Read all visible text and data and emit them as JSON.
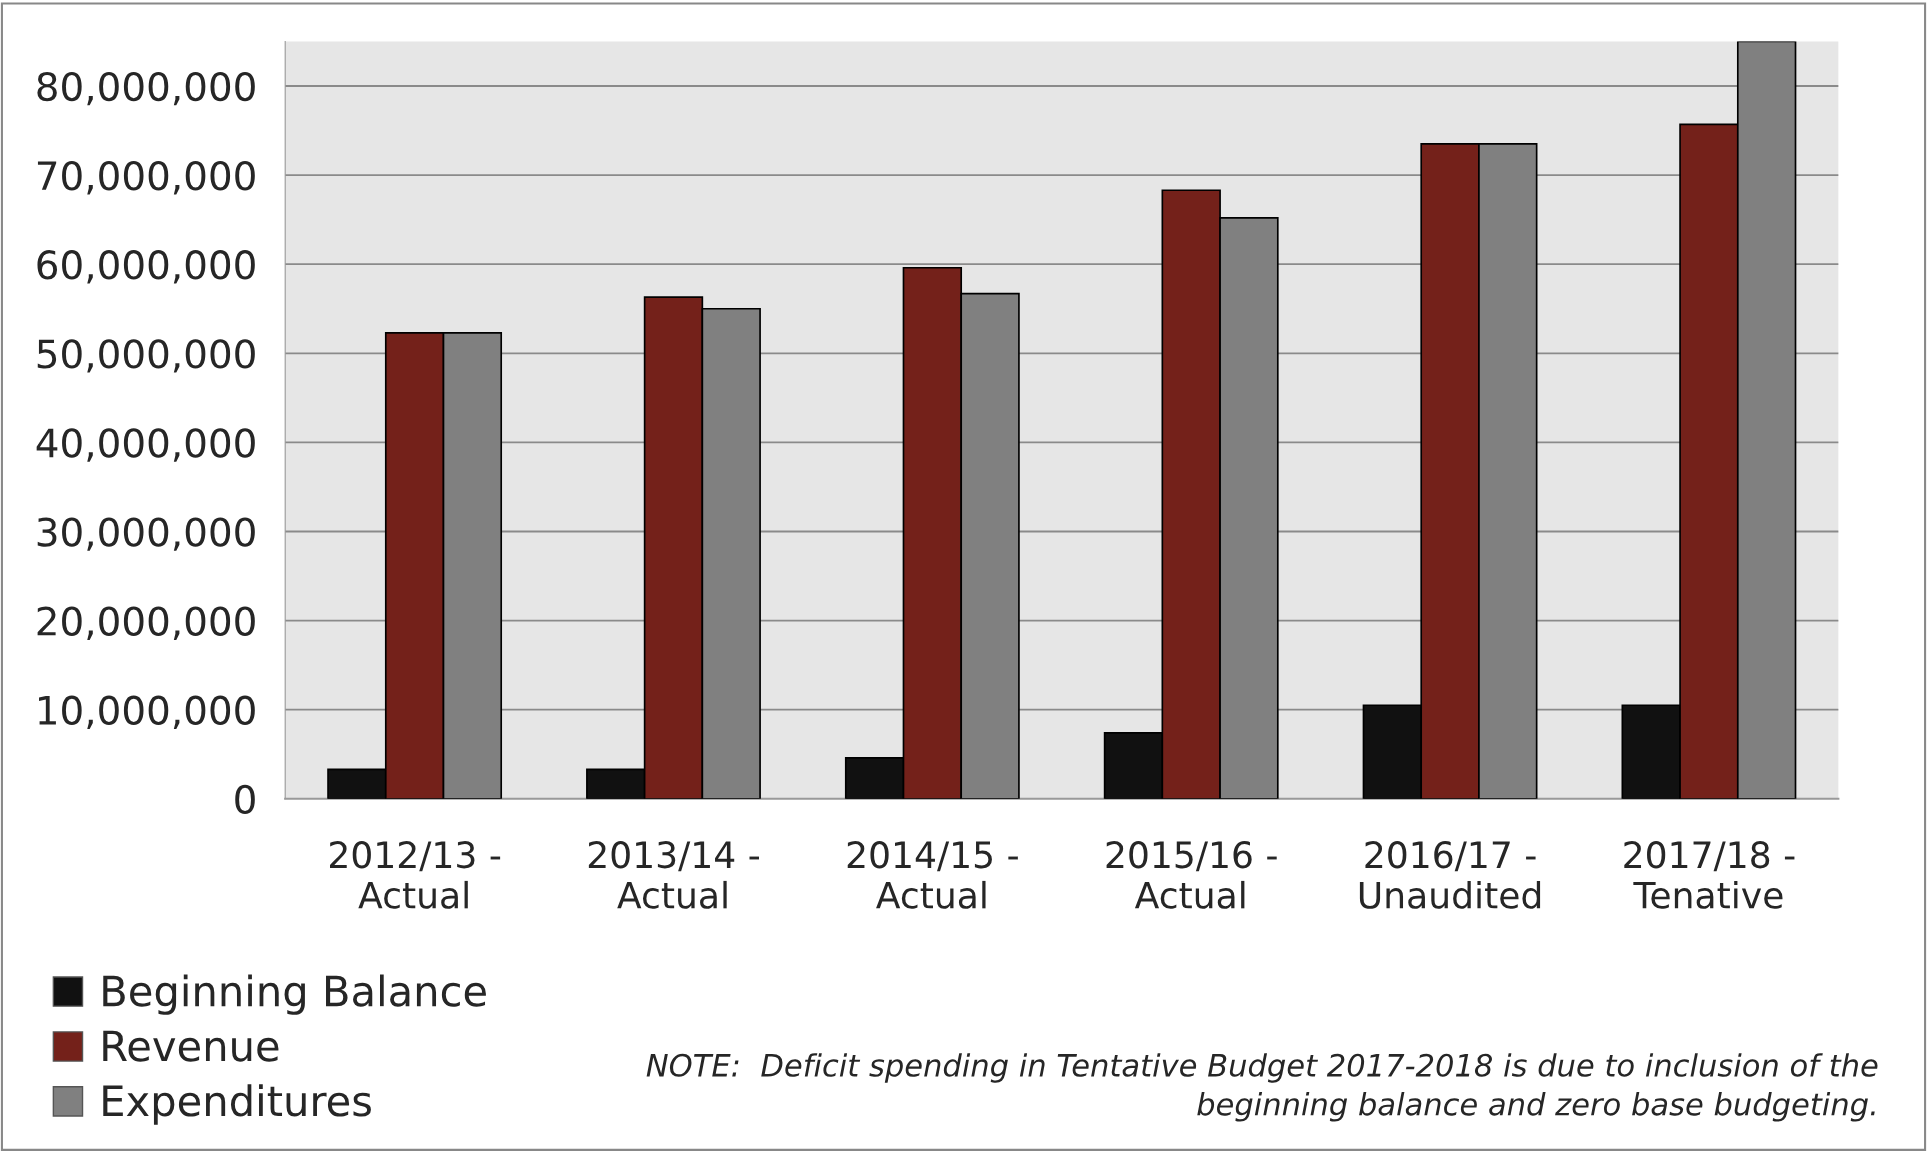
{
  "chart_data": {
    "type": "bar",
    "categories": [
      "2012/13 -\nActual",
      "2013/14 -\nActual",
      "2014/15 -\nActual",
      "2015/16 -\nActual",
      "2016/17 -\nUnaudited",
      "2017/18 -\nTenative"
    ],
    "series": [
      {
        "name": "Beginning Balance",
        "color": "#111111",
        "values": [
          3300000,
          3300000,
          4600000,
          7400000,
          10500000,
          10500000
        ]
      },
      {
        "name": "Revenue",
        "color": "#74211a",
        "values": [
          52300000,
          56300000,
          59600000,
          68300000,
          73500000,
          75700000
        ]
      },
      {
        "name": "Expenditures",
        "color": "#808080",
        "values": [
          52300000,
          55000000,
          56700000,
          65200000,
          73500000,
          85000000
        ]
      }
    ],
    "ylim": [
      0,
      85000000
    ],
    "yticks": [
      {
        "value": 0,
        "label": "0"
      },
      {
        "value": 10000000,
        "label": "10,000,000"
      },
      {
        "value": 20000000,
        "label": "20,000,000"
      },
      {
        "value": 30000000,
        "label": "30,000,000"
      },
      {
        "value": 40000000,
        "label": "40,000,000"
      },
      {
        "value": 50000000,
        "label": "50,000,000"
      },
      {
        "value": 60000000,
        "label": "60,000,000"
      },
      {
        "value": 70000000,
        "label": "70,000,000"
      },
      {
        "value": 80000000,
        "label": "80,000,000"
      }
    ],
    "grid": "y",
    "legend": "bottom left",
    "annotations": [
      "NOTE:  Deficit spending in Tentative Budget 2017-2018 is due to inclusion of the\nbeginning balance and zero base budgeting."
    ]
  }
}
